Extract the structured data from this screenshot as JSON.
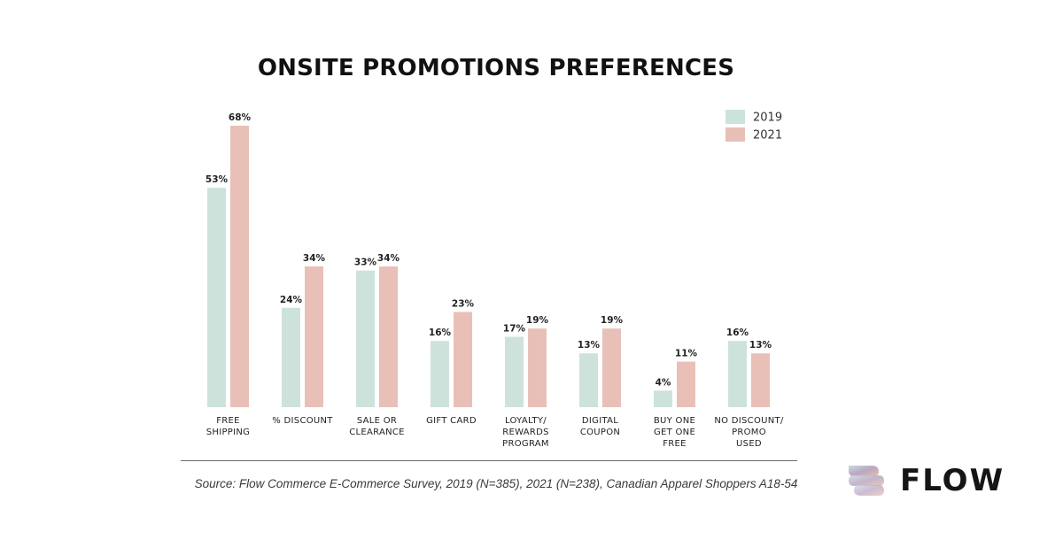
{
  "title": "ONSITE PROMOTIONS PREFERENCES",
  "source": "Source: Flow Commerce E-Commerce Survey, 2019 (N=385), 2021 (N=238), Canadian Apparel Shoppers A18-54",
  "brand": {
    "name": "FLOW",
    "logo_icon": "flow-logo-icon"
  },
  "chart_data": {
    "type": "bar",
    "categories": [
      [
        "FREE",
        "SHIPPING"
      ],
      [
        "% DISCOUNT"
      ],
      [
        "SALE OR",
        "CLEARANCE"
      ],
      [
        "GIFT CARD"
      ],
      [
        "LOYALTY/",
        "REWARDS",
        "PROGRAM"
      ],
      [
        "DIGITAL",
        "COUPON"
      ],
      [
        "BUY ONE",
        "GET ONE",
        "FREE"
      ],
      [
        "NO DISCOUNT/",
        "PROMO",
        "USED"
      ]
    ],
    "series": [
      {
        "name": "2019",
        "color": "#cde2db",
        "values": [
          53,
          24,
          33,
          16,
          17,
          13,
          4,
          16
        ]
      },
      {
        "name": "2021",
        "color": "#e8c0b8",
        "values": [
          68,
          34,
          34,
          23,
          19,
          19,
          11,
          13
        ]
      }
    ],
    "value_suffix": "%",
    "ylim": [
      0,
      70
    ],
    "grid": false,
    "y_axis_visible": false,
    "legend_position": "top-right"
  }
}
